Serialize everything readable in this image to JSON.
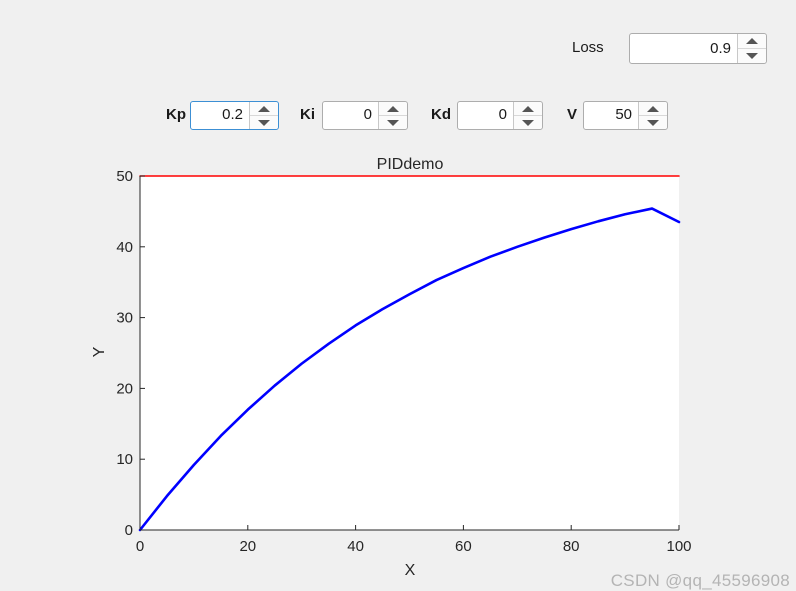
{
  "loss": {
    "label": "Loss",
    "value": "0.9"
  },
  "params": {
    "kp": {
      "label": "Kp",
      "value": "0.2"
    },
    "ki": {
      "label": "Ki",
      "value": "0"
    },
    "kd": {
      "label": "Kd",
      "value": "0"
    },
    "v": {
      "label": "V",
      "value": "50"
    }
  },
  "chart_data": {
    "type": "line",
    "title": "PIDdemo",
    "xlabel": "X",
    "ylabel": "Y",
    "xlim": [
      0,
      100
    ],
    "ylim": [
      0,
      50
    ],
    "xticks": [
      0,
      20,
      40,
      60,
      80,
      100
    ],
    "yticks": [
      0,
      10,
      20,
      30,
      40,
      50
    ],
    "grid": false,
    "series": [
      {
        "color": "#ff0000",
        "x": [
          0,
          100
        ],
        "y": [
          50,
          50
        ]
      },
      {
        "color": "#0000ff",
        "x": [
          0,
          5,
          10,
          15,
          20,
          25,
          30,
          35,
          40,
          45,
          50,
          55,
          60,
          65,
          70,
          75,
          80,
          85,
          90,
          95,
          100
        ],
        "y": [
          0,
          4.8,
          9.2,
          13.3,
          17.0,
          20.4,
          23.5,
          26.3,
          28.9,
          31.2,
          33.3,
          35.3,
          37.0,
          38.6,
          40.0,
          41.3,
          42.5,
          43.6,
          44.6,
          45.4,
          43.5
        ]
      }
    ]
  },
  "colors": {
    "background": "#f0f0f0",
    "axes_background": "#ffffff",
    "spinner_focus_border": "#3c8fd4"
  },
  "watermark": "CSDN @qq_45596908"
}
